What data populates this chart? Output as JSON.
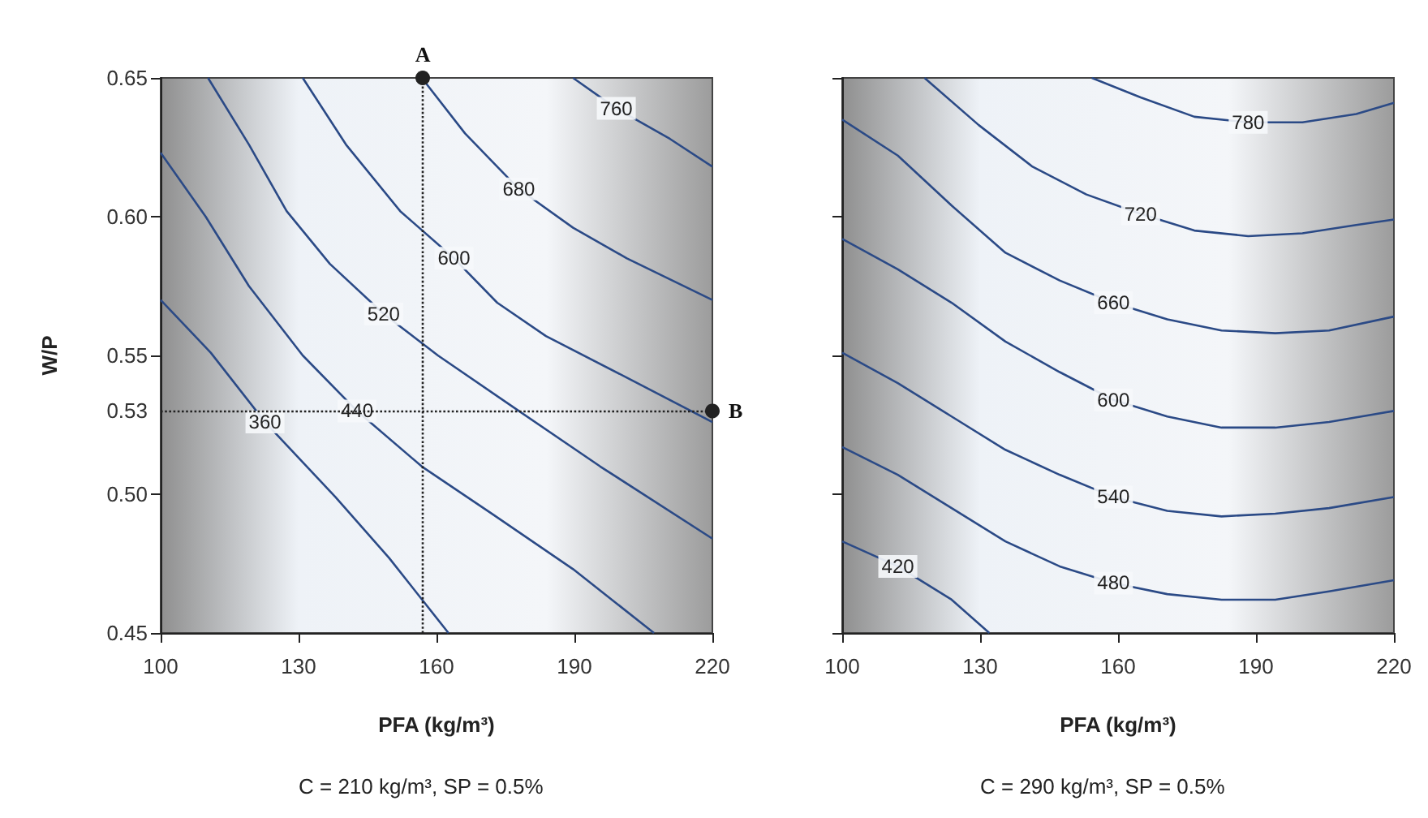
{
  "chart_data": [
    {
      "type": "line",
      "xlabel": "PFA (kg/m³)",
      "ylabel": "W/P",
      "xlim": [
        100,
        220
      ],
      "xticks": [
        100,
        130,
        160,
        190,
        220
      ],
      "ylim": [
        0.45,
        0.65
      ],
      "yticks": [
        {
          "value": 0.45,
          "label": "0.45"
        },
        {
          "value": 0.5,
          "label": "0.50"
        },
        {
          "value": 0.55,
          "label": "0.55"
        },
        {
          "value": 0.6,
          "label": "0.60"
        },
        {
          "value": 0.65,
          "label": "0.65"
        }
      ],
      "series": [
        {
          "name": "360",
          "color": "#2b4a86",
          "x": [
            100,
            110.9,
            122.7,
            138.0,
            149.7,
            162.6
          ],
          "values": [
            0.57,
            0.551,
            0.526,
            0.499,
            0.477,
            0.45
          ]
        },
        {
          "name": "440",
          "color": "#2b4a86",
          "x": [
            100,
            109.8,
            119.2,
            130.9,
            142.7,
            156.8,
            172.0,
            189.7,
            207.3
          ],
          "values": [
            0.623,
            0.6,
            0.575,
            0.55,
            0.53,
            0.51,
            0.493,
            0.473,
            0.45
          ]
        },
        {
          "name": "520",
          "color": "#2b4a86",
          "x": [
            110.3,
            119.2,
            127.4,
            136.8,
            148.5,
            160.3,
            177.9,
            195.6,
            220
          ],
          "values": [
            0.65,
            0.626,
            0.602,
            0.583,
            0.565,
            0.55,
            0.53,
            0.51,
            0.484
          ]
        },
        {
          "name": "600",
          "color": "#2b4a86",
          "x": [
            130.9,
            140.3,
            152.1,
            163.8,
            173.2,
            183.8,
            201.4,
            220
          ],
          "values": [
            0.65,
            0.626,
            0.602,
            0.585,
            0.569,
            0.557,
            0.542,
            0.526
          ]
        },
        {
          "name": "680",
          "color": "#2b4a86",
          "x": [
            156.8,
            166.2,
            177.9,
            189.7,
            201.4,
            220
          ],
          "values": [
            0.65,
            0.63,
            0.61,
            0.596,
            0.585,
            0.57
          ]
        },
        {
          "name": "760",
          "color": "#2b4a86",
          "x": [
            189.7,
            199.1,
            210.8,
            220
          ],
          "values": [
            0.65,
            0.639,
            0.628,
            0.618
          ]
        }
      ],
      "ref_lines": [
        {
          "axis": "x",
          "value": 157,
          "label": "A",
          "color": "#222222",
          "line_style": "dotted"
        },
        {
          "axis": "y",
          "value": 0.53,
          "label": "0.53",
          "color": "#222222",
          "line_style": "dotted"
        }
      ],
      "annotations": [
        "C = 210 kg/m³, SP = 0.5%",
        {
          "text": "B",
          "x": 220,
          "y": 0.53
        }
      ]
    },
    {
      "type": "line",
      "xlabel": "PFA (kg/m³)",
      "xlim": [
        100,
        220
      ],
      "xticks": [
        100,
        130,
        160,
        190,
        220
      ],
      "ylim": [
        0.45,
        0.65
      ],
      "yticks": [
        0.45,
        0.5,
        0.55,
        0.6,
        0.65
      ],
      "tick_labels": "x",
      "series": [
        {
          "name": "420",
          "color": "#2b4a86",
          "x": [
            100,
            112.1,
            123.8,
            132.0
          ],
          "values": [
            0.483,
            0.474,
            0.462,
            0.45
          ]
        },
        {
          "name": "480",
          "color": "#2b4a86",
          "x": [
            100,
            112.1,
            123.8,
            135.5,
            147.3,
            159.0,
            170.7,
            182.5,
            194.2,
            205.9,
            220
          ],
          "values": [
            0.517,
            0.507,
            0.495,
            0.483,
            0.474,
            0.468,
            0.464,
            0.462,
            0.462,
            0.465,
            0.469
          ]
        },
        {
          "name": "540",
          "color": "#2b4a86",
          "x": [
            100,
            112.1,
            123.8,
            135.5,
            147.3,
            159.0,
            170.7,
            182.5,
            194.2,
            205.9,
            220
          ],
          "values": [
            0.551,
            0.54,
            0.528,
            0.516,
            0.507,
            0.499,
            0.494,
            0.492,
            0.493,
            0.495,
            0.499
          ]
        },
        {
          "name": "600",
          "color": "#2b4a86",
          "x": [
            100,
            112.1,
            123.8,
            135.5,
            147.3,
            159.0,
            170.7,
            182.5,
            194.2,
            205.9,
            220
          ],
          "values": [
            0.592,
            0.581,
            0.569,
            0.555,
            0.544,
            0.534,
            0.528,
            0.524,
            0.524,
            0.526,
            0.53
          ]
        },
        {
          "name": "660",
          "color": "#2b4a86",
          "x": [
            100,
            112.1,
            123.8,
            135.5,
            147.3,
            159.0,
            170.7,
            182.5,
            194.2,
            205.9,
            220
          ],
          "values": [
            0.635,
            0.622,
            0.604,
            0.587,
            0.577,
            0.569,
            0.563,
            0.559,
            0.558,
            0.559,
            0.564
          ]
        },
        {
          "name": "720",
          "color": "#2b4a86",
          "x": [
            117.9,
            129.7,
            141.4,
            153.1,
            164.9,
            176.6,
            188.3,
            200.1,
            211.8,
            220
          ],
          "values": [
            0.65,
            0.633,
            0.618,
            0.608,
            0.601,
            0.595,
            0.593,
            0.594,
            0.597,
            0.599
          ]
        },
        {
          "name": "780",
          "color": "#2b4a86",
          "x": [
            154.3,
            164.9,
            176.6,
            188.3,
            200.1,
            211.8,
            220
          ],
          "values": [
            0.65,
            0.643,
            0.636,
            0.634,
            0.634,
            0.637,
            0.641
          ]
        }
      ],
      "annotations": [
        "C = 290 kg/m³, SP = 0.5%"
      ]
    }
  ]
}
